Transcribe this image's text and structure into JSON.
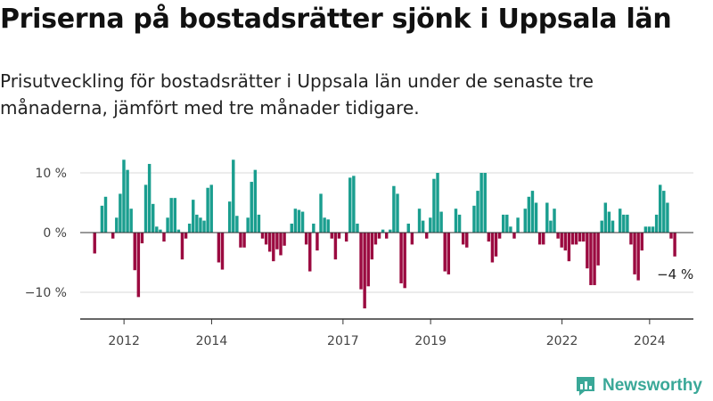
{
  "header": {
    "title": "Priserna på bostadsrätter sjönk i Uppsala län",
    "subtitle": "Prisutveckling för bostadsrätter i Uppsala län under de senaste tre månaderna, jämfört med tre månader tidigare."
  },
  "brand": {
    "name": "Newsworthy"
  },
  "colors": {
    "positive": "#1a9e8f",
    "negative": "#9b0a40",
    "axis": "#333333",
    "grid": "#d9d9d9",
    "brand": "#3aa898"
  },
  "chart_data": {
    "type": "bar",
    "ylim": [
      -14,
      13
    ],
    "y_ticks": [
      {
        "value": 10,
        "label": "10 %"
      },
      {
        "value": 0,
        "label": "0 %"
      },
      {
        "value": -10,
        "label": "−10 %"
      }
    ],
    "x_ticks": [
      "2012",
      "2014",
      "2017",
      "2019",
      "2022",
      "2024"
    ],
    "x_tick_positions": [
      2012,
      2014,
      2017,
      2019,
      2022,
      2024
    ],
    "x_range": [
      2011.0,
      2025.0
    ],
    "x_start": 2011.33,
    "x_step": 0.0833,
    "grid": "horizontal",
    "annotation": {
      "text": "−4 %",
      "value": -4
    },
    "values": [
      -3.5,
      0.0,
      4.5,
      6.0,
      0.0,
      -1.0,
      2.5,
      6.5,
      12.2,
      10.5,
      4.0,
      -6.3,
      -10.8,
      -1.8,
      8.0,
      11.5,
      4.8,
      1.0,
      0.5,
      -1.5,
      2.5,
      5.8,
      5.8,
      0.5,
      -4.5,
      -1.0,
      1.5,
      5.5,
      3.0,
      2.5,
      2.0,
      7.5,
      8.0,
      0.0,
      -5.0,
      -6.2,
      0.0,
      5.2,
      12.2,
      2.8,
      -2.5,
      -2.5,
      2.5,
      8.5,
      10.5,
      3.0,
      -1.0,
      -2.0,
      -3.2,
      -4.8,
      -2.8,
      -3.8,
      -2.2,
      0.0,
      1.5,
      4.0,
      3.8,
      3.5,
      -2.0,
      -6.5,
      1.5,
      -3.0,
      6.5,
      2.5,
      2.2,
      -1.0,
      -4.5,
      -1.0,
      0.0,
      -1.5,
      9.2,
      9.5,
      1.5,
      -9.5,
      -12.7,
      -9.0,
      -4.5,
      -2.0,
      -1.0,
      0.5,
      -1.0,
      0.5,
      7.8,
      6.5,
      -8.5,
      -9.3,
      1.5,
      -2.0,
      0.0,
      4.0,
      2.0,
      -1.0,
      2.5,
      9.0,
      10.0,
      3.5,
      -6.5,
      -7.0,
      0.0,
      4.0,
      3.0,
      -2.0,
      -2.5,
      0.0,
      4.5,
      7.0,
      10.0,
      10.0,
      -1.5,
      -5.0,
      -4.0,
      -1.0,
      3.0,
      3.0,
      1.0,
      -1.0,
      2.5,
      0.0,
      4.0,
      6.0,
      7.0,
      5.0,
      -2.0,
      -2.0,
      5.0,
      2.0,
      4.0,
      -1.0,
      -2.5,
      -3.0,
      -4.8,
      -2.0,
      -2.0,
      -1.5,
      -1.5,
      -6.0,
      -8.8,
      -8.8,
      -5.5,
      2.0,
      5.0,
      3.5,
      2.0,
      0.0,
      4.0,
      3.0,
      3.0,
      -2.0,
      -7.0,
      -8.0,
      -3.0,
      1.0,
      1.0,
      1.0,
      3.0,
      8.0,
      7.0,
      5.0,
      -1.0,
      -4.0
    ]
  }
}
